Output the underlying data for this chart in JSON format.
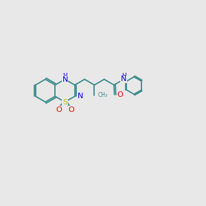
{
  "background_color": "#e8e8e8",
  "bond_color": "#3a8a8a",
  "N_color": "#0000ee",
  "S_color": "#bbbb00",
  "O_color": "#ee0000",
  "bond_width": 1.3,
  "font_size": 8.0,
  "fig_width": 3.0,
  "fig_height": 3.0,
  "dpi": 100,
  "xlim": [
    0,
    10
  ],
  "ylim": [
    0,
    10
  ]
}
